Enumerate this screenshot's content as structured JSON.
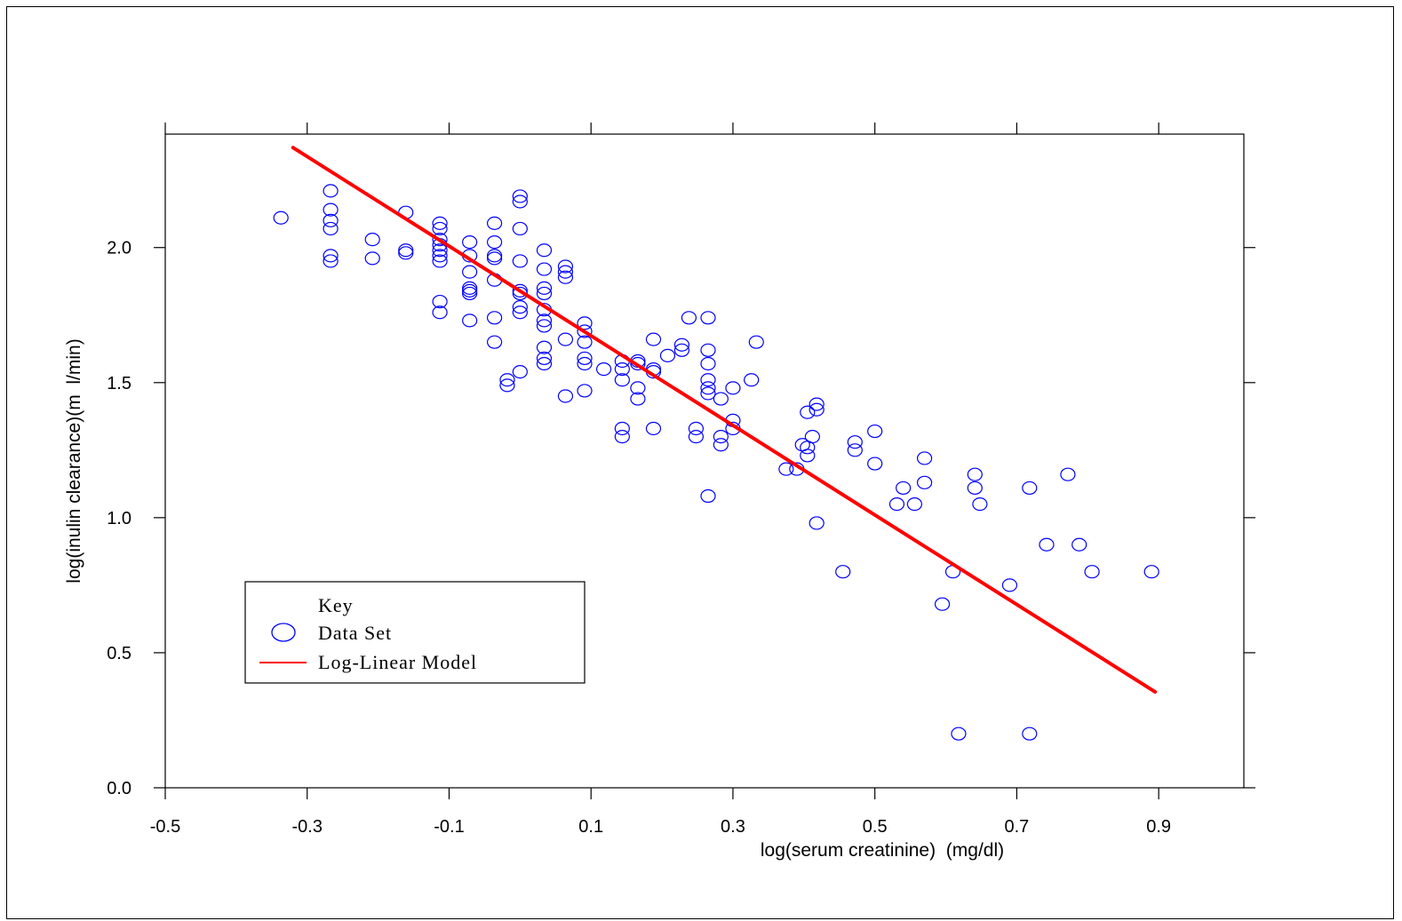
{
  "chart_data": {
    "type": "scatter",
    "xlabel": "log(serum creatinine)  (mg/dl)",
    "ylabel": "log(inulin clearance)(m  l/min)",
    "xlim": [
      -0.5,
      1.02
    ],
    "ylim": [
      0.0,
      2.42
    ],
    "xticks": [
      -0.5,
      -0.3,
      -0.1,
      0.1,
      0.3,
      0.5,
      0.7,
      0.9
    ],
    "xtick_labels": [
      "-0.5",
      "-0.3",
      "-0.1",
      "0.1",
      "0.3",
      "0.5",
      "0.7",
      "0.9"
    ],
    "yticks": [
      0.0,
      0.5,
      1.0,
      1.5,
      2.0
    ],
    "ytick_labels": [
      "0.0",
      "0.5",
      "1.0",
      "1.5",
      "2.0"
    ],
    "grid": false,
    "legend": {
      "title": "Key",
      "placement": "lower-left",
      "entries": [
        {
          "label": "Data Set",
          "marker": "circle",
          "color": "#0000ff"
        },
        {
          "label": "Log-Linear Model",
          "marker": "line",
          "color": "#ff0000"
        }
      ]
    },
    "series": [
      {
        "name": "Data Set",
        "kind": "scatter",
        "color": "#0000ff",
        "points": [
          [
            -0.337,
            2.11
          ],
          [
            -0.267,
            2.21
          ],
          [
            -0.267,
            2.14
          ],
          [
            -0.267,
            2.1
          ],
          [
            -0.267,
            2.07
          ],
          [
            -0.267,
            1.97
          ],
          [
            -0.267,
            1.95
          ],
          [
            -0.208,
            2.03
          ],
          [
            -0.208,
            1.96
          ],
          [
            -0.161,
            2.13
          ],
          [
            -0.161,
            1.99
          ],
          [
            -0.161,
            1.98
          ],
          [
            -0.113,
            2.09
          ],
          [
            -0.113,
            2.07
          ],
          [
            -0.113,
            2.03
          ],
          [
            -0.113,
            2.01
          ],
          [
            -0.113,
            1.99
          ],
          [
            -0.113,
            1.97
          ],
          [
            -0.113,
            1.95
          ],
          [
            -0.113,
            1.8
          ],
          [
            -0.113,
            1.76
          ],
          [
            -0.071,
            2.02
          ],
          [
            -0.071,
            1.97
          ],
          [
            -0.071,
            1.91
          ],
          [
            -0.071,
            1.85
          ],
          [
            -0.071,
            1.84
          ],
          [
            -0.071,
            1.83
          ],
          [
            -0.071,
            1.73
          ],
          [
            -0.036,
            2.09
          ],
          [
            -0.036,
            2.02
          ],
          [
            -0.036,
            1.97
          ],
          [
            -0.036,
            1.96
          ],
          [
            -0.036,
            1.88
          ],
          [
            -0.036,
            1.74
          ],
          [
            -0.036,
            1.65
          ],
          [
            -0.018,
            1.51
          ],
          [
            -0.018,
            1.49
          ],
          [
            0.0,
            2.19
          ],
          [
            0.0,
            2.17
          ],
          [
            0.0,
            2.07
          ],
          [
            0.0,
            1.95
          ],
          [
            0.0,
            1.84
          ],
          [
            0.0,
            1.83
          ],
          [
            0.0,
            1.78
          ],
          [
            0.0,
            1.76
          ],
          [
            0.0,
            1.54
          ],
          [
            0.034,
            1.99
          ],
          [
            0.034,
            1.92
          ],
          [
            0.034,
            1.85
          ],
          [
            0.034,
            1.83
          ],
          [
            0.034,
            1.77
          ],
          [
            0.034,
            1.73
          ],
          [
            0.034,
            1.71
          ],
          [
            0.034,
            1.63
          ],
          [
            0.034,
            1.59
          ],
          [
            0.034,
            1.57
          ],
          [
            0.064,
            1.93
          ],
          [
            0.064,
            1.91
          ],
          [
            0.064,
            1.89
          ],
          [
            0.064,
            1.66
          ],
          [
            0.064,
            1.45
          ],
          [
            0.091,
            1.72
          ],
          [
            0.091,
            1.69
          ],
          [
            0.091,
            1.65
          ],
          [
            0.091,
            1.59
          ],
          [
            0.091,
            1.57
          ],
          [
            0.091,
            1.47
          ],
          [
            0.118,
            1.55
          ],
          [
            0.144,
            1.58
          ],
          [
            0.144,
            1.55
          ],
          [
            0.144,
            1.51
          ],
          [
            0.144,
            1.33
          ],
          [
            0.144,
            1.3
          ],
          [
            0.166,
            1.58
          ],
          [
            0.166,
            1.57
          ],
          [
            0.166,
            1.48
          ],
          [
            0.166,
            1.44
          ],
          [
            0.188,
            1.66
          ],
          [
            0.188,
            1.55
          ],
          [
            0.188,
            1.54
          ],
          [
            0.188,
            1.33
          ],
          [
            0.208,
            1.6
          ],
          [
            0.228,
            1.64
          ],
          [
            0.228,
            1.62
          ],
          [
            0.238,
            1.74
          ],
          [
            0.248,
            1.33
          ],
          [
            0.248,
            1.3
          ],
          [
            0.265,
            1.74
          ],
          [
            0.265,
            1.62
          ],
          [
            0.265,
            1.57
          ],
          [
            0.265,
            1.51
          ],
          [
            0.265,
            1.48
          ],
          [
            0.265,
            1.46
          ],
          [
            0.265,
            1.08
          ],
          [
            0.283,
            1.44
          ],
          [
            0.283,
            1.3
          ],
          [
            0.283,
            1.27
          ],
          [
            0.3,
            1.48
          ],
          [
            0.3,
            1.36
          ],
          [
            0.3,
            1.33
          ],
          [
            0.326,
            1.51
          ],
          [
            0.333,
            1.65
          ],
          [
            0.375,
            1.18
          ],
          [
            0.39,
            1.18
          ],
          [
            0.398,
            1.27
          ],
          [
            0.405,
            1.39
          ],
          [
            0.405,
            1.26
          ],
          [
            0.405,
            1.23
          ],
          [
            0.412,
            1.3
          ],
          [
            0.418,
            1.42
          ],
          [
            0.418,
            1.4
          ],
          [
            0.418,
            0.98
          ],
          [
            0.455,
            0.8
          ],
          [
            0.472,
            1.28
          ],
          [
            0.472,
            1.25
          ],
          [
            0.5,
            1.32
          ],
          [
            0.5,
            1.2
          ],
          [
            0.531,
            1.05
          ],
          [
            0.54,
            1.11
          ],
          [
            0.556,
            1.05
          ],
          [
            0.57,
            1.22
          ],
          [
            0.57,
            1.13
          ],
          [
            0.595,
            0.68
          ],
          [
            0.61,
            0.8
          ],
          [
            0.618,
            0.2
          ],
          [
            0.641,
            1.16
          ],
          [
            0.641,
            1.11
          ],
          [
            0.648,
            1.05
          ],
          [
            0.69,
            0.75
          ],
          [
            0.718,
            1.11
          ],
          [
            0.718,
            0.2
          ],
          [
            0.742,
            0.9
          ],
          [
            0.772,
            1.16
          ],
          [
            0.788,
            0.9
          ],
          [
            0.806,
            0.8
          ],
          [
            0.89,
            0.8
          ]
        ]
      },
      {
        "name": "Log-Linear Model",
        "kind": "line",
        "color": "#ff0000",
        "points": [
          [
            -0.32,
            2.37
          ],
          [
            0.895,
            0.355
          ]
        ]
      }
    ]
  }
}
